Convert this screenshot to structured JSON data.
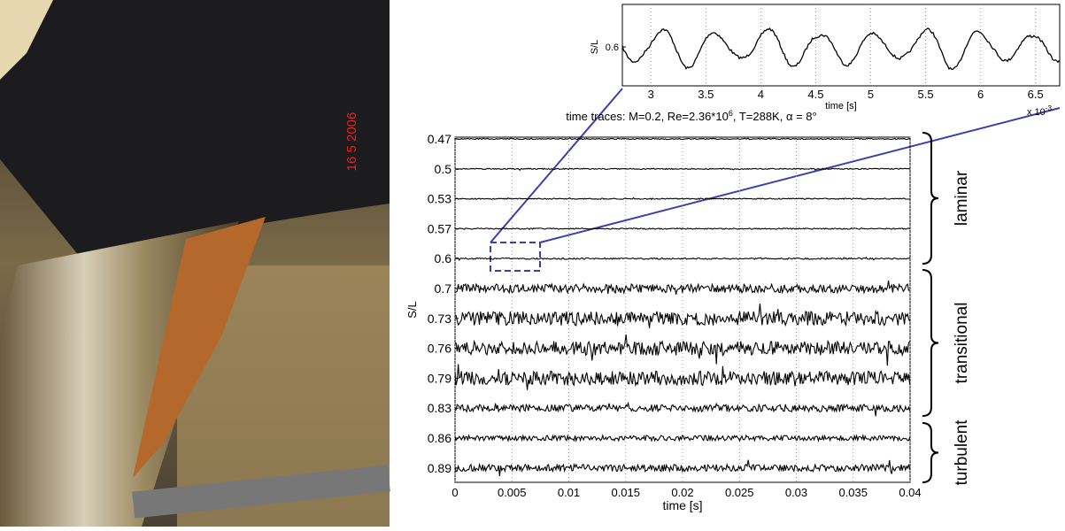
{
  "photo": {
    "date_stamp": "16  5 2006"
  },
  "inset": {
    "ylabel": "S/L",
    "yticks": [
      0.6
    ],
    "xlabel": "time [s]",
    "xticks": [
      3,
      3.5,
      4,
      4.5,
      5,
      5.5,
      6,
      6.5
    ],
    "xlim": [
      2.74,
      6.72
    ],
    "exponent_base": "x 10",
    "exponent": "-3"
  },
  "main": {
    "title_prefix": "time traces: M=0.2, Re=2.36*10",
    "title_sup": "6",
    "title_suffix": ", T=288K, α = 8°",
    "ylabel": "S/L",
    "xlabel": "time [s]",
    "stations": [
      0.47,
      0.5,
      0.53,
      0.57,
      0.6,
      0.7,
      0.73,
      0.76,
      0.79,
      0.83,
      0.86,
      0.89
    ],
    "xticks": [
      0,
      0.005,
      0.01,
      0.015,
      0.02,
      0.025,
      0.03,
      0.035,
      0.04
    ],
    "xlim": [
      0,
      0.04
    ],
    "regimes": [
      "laminar",
      "transitional",
      "turbulent"
    ]
  }
}
